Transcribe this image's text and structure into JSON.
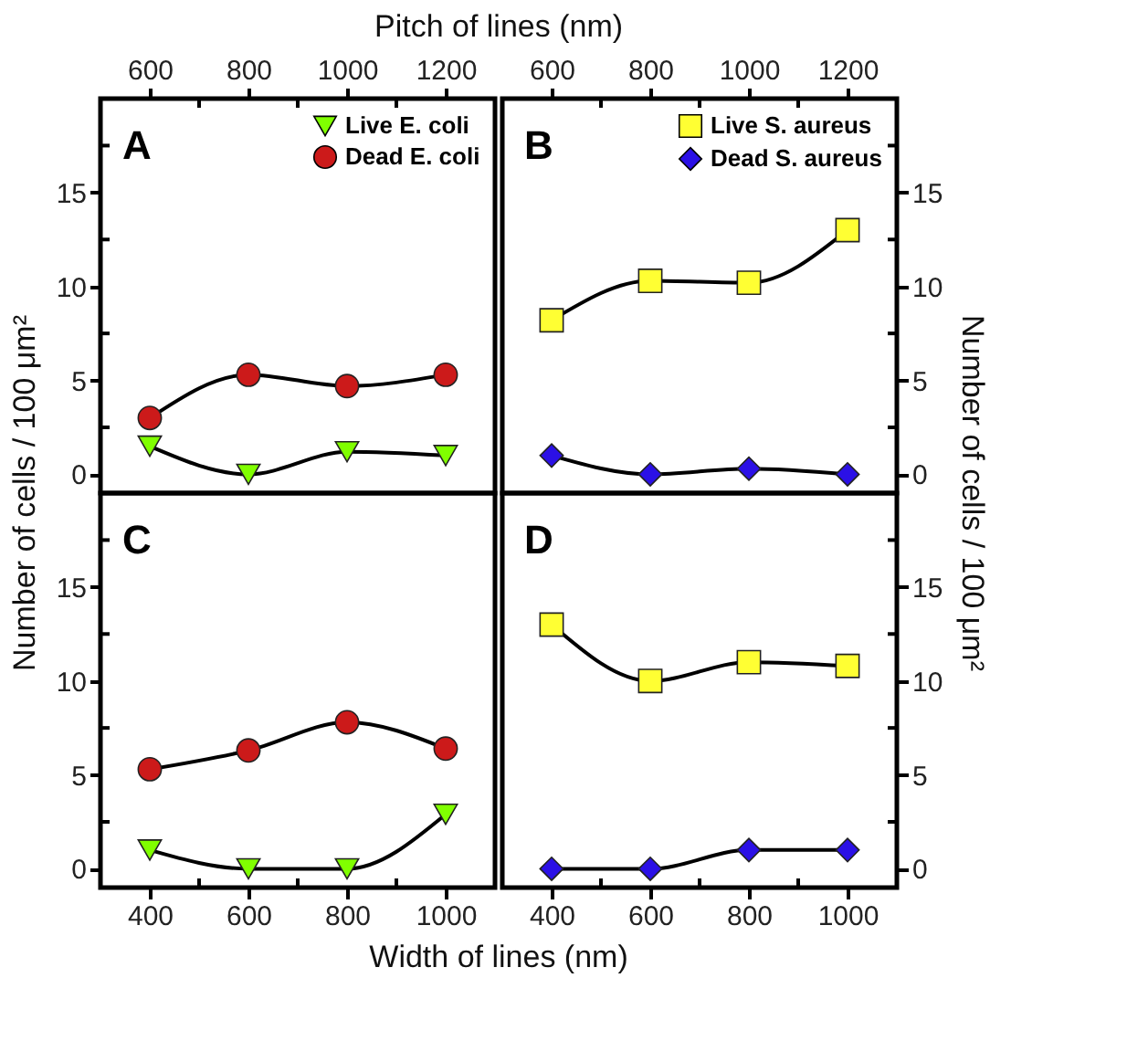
{
  "chart_data": [
    {
      "type": "line",
      "annotations": [
        "A"
      ],
      "xlabel": "Pitch of lines (nm)",
      "ylabel": "Number of cells / 100 μm²",
      "xlim": [
        500,
        1300
      ],
      "xticks": [
        600,
        {
          "value": 700,
          "label": null
        },
        800,
        {
          "value": 900,
          "label": null
        },
        1000,
        {
          "value": 1100,
          "label": null
        },
        1200
      ],
      "ylim": [
        -1,
        20
      ],
      "yticks": [
        0,
        {
          "value": 2.5,
          "label": null
        },
        5,
        {
          "value": 7.5,
          "label": null
        },
        10,
        {
          "value": 12.5,
          "label": null
        },
        15,
        {
          "value": 17.5,
          "label": null
        }
      ],
      "legend": "top right",
      "grid": false,
      "series": [
        {
          "name": "Live E. coli",
          "color": "#80ff00",
          "marker": "triangle-down",
          "x": [
            600,
            800,
            1000,
            1200
          ],
          "values": [
            1.5,
            0,
            1.2,
            1.0
          ]
        },
        {
          "name": "Dead E. coli",
          "color": "#cc1a1a",
          "marker": "circle",
          "x": [
            600,
            800,
            1000,
            1200
          ],
          "values": [
            3.0,
            5.3,
            4.7,
            5.3
          ]
        }
      ]
    },
    {
      "type": "line",
      "annotations": [
        "B"
      ],
      "ylabel": "Number of cells / 100 μm²",
      "xlim": [
        500,
        1300
      ],
      "xticks": [
        600,
        {
          "value": 700,
          "label": null
        },
        800,
        {
          "value": 900,
          "label": null
        },
        1000,
        {
          "value": 1100,
          "label": null
        },
        1200
      ],
      "ylim": [
        -1,
        20
      ],
      "yticks": [
        0,
        {
          "value": 2.5,
          "label": null
        },
        5,
        {
          "value": 7.5,
          "label": null
        },
        10,
        {
          "value": 12.5,
          "label": null
        },
        15,
        {
          "value": 17.5,
          "label": null
        }
      ],
      "legend": "top right",
      "grid": false,
      "series": [
        {
          "name": "Live S. aureus",
          "color": "#ffff33",
          "marker": "square",
          "x": [
            600,
            800,
            1000,
            1200
          ],
          "values": [
            8.2,
            10.3,
            10.2,
            13.0
          ]
        },
        {
          "name": "Dead S. aureus",
          "color": "#2b10e6",
          "marker": "diamond",
          "x": [
            600,
            800,
            1000,
            1200
          ],
          "values": [
            1.0,
            0,
            0.3,
            0
          ]
        }
      ]
    },
    {
      "type": "line",
      "annotations": [
        "C"
      ],
      "xlabel": "Width of lines (nm)",
      "xlim": [
        300,
        1100
      ],
      "xticks": [
        400,
        {
          "value": 500,
          "label": null
        },
        600,
        {
          "value": 700,
          "label": null
        },
        800,
        {
          "value": 900,
          "label": null
        },
        1000
      ],
      "ylim": [
        -1,
        20
      ],
      "yticks": [
        0,
        {
          "value": 2.5,
          "label": null
        },
        5,
        {
          "value": 7.5,
          "label": null
        },
        10,
        {
          "value": 12.5,
          "label": null
        },
        15,
        {
          "value": 17.5,
          "label": null
        }
      ],
      "grid": false,
      "series": [
        {
          "color": "#80ff00",
          "marker": "triangle-down",
          "x": [
            400,
            600,
            800,
            1000
          ],
          "values": [
            1.0,
            0,
            0,
            2.9
          ]
        },
        {
          "color": "#cc1a1a",
          "marker": "circle",
          "x": [
            400,
            600,
            800,
            1000
          ],
          "values": [
            5.3,
            6.3,
            7.8,
            6.4
          ]
        }
      ]
    },
    {
      "type": "line",
      "annotations": [
        "D"
      ],
      "xlim": [
        300,
        1100
      ],
      "xticks": [
        400,
        {
          "value": 500,
          "label": null
        },
        600,
        {
          "value": 700,
          "label": null
        },
        800,
        {
          "value": 900,
          "label": null
        },
        1000
      ],
      "ylim": [
        -1,
        20
      ],
      "yticks": [
        0,
        {
          "value": 2.5,
          "label": null
        },
        5,
        {
          "value": 7.5,
          "label": null
        },
        10,
        {
          "value": 12.5,
          "label": null
        },
        15,
        {
          "value": 17.5,
          "label": null
        }
      ],
      "grid": false,
      "series": [
        {
          "color": "#ffff33",
          "marker": "square",
          "x": [
            400,
            600,
            800,
            1000
          ],
          "values": [
            13.0,
            10.0,
            11.0,
            10.8
          ]
        },
        {
          "color": "#2b10e6",
          "marker": "diamond",
          "x": [
            400,
            600,
            800,
            1000
          ],
          "values": [
            0,
            0,
            1.0,
            1.0
          ]
        }
      ]
    }
  ]
}
